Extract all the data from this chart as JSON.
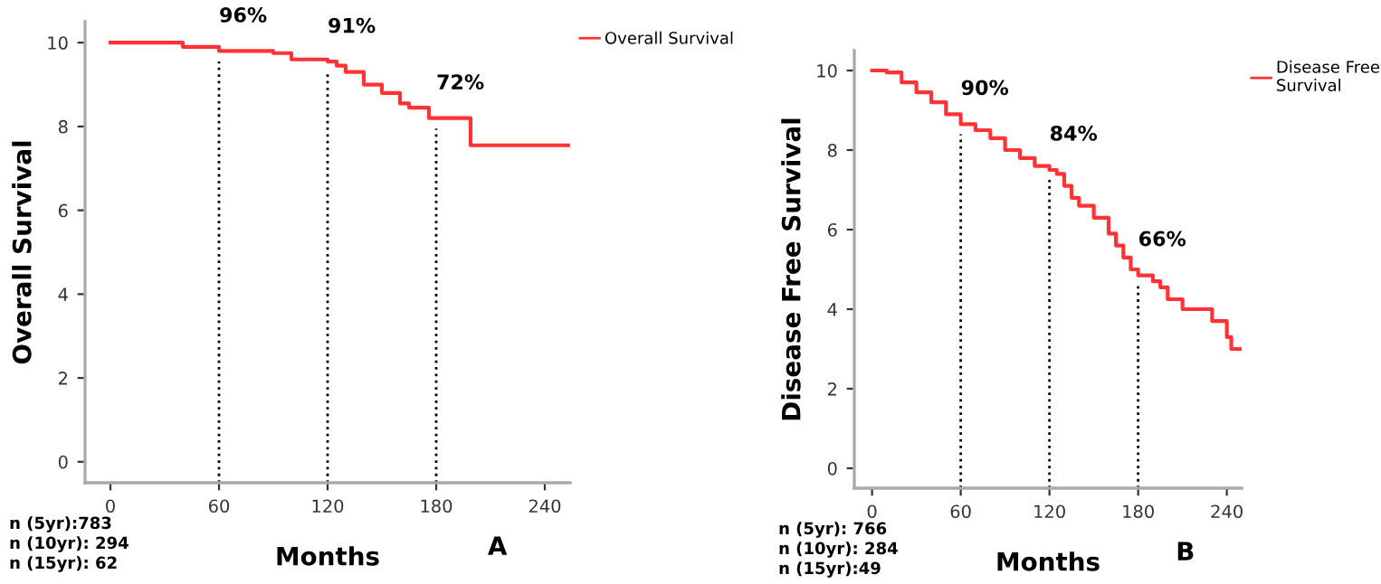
{
  "chart_data": [
    {
      "type": "step",
      "xlabel": "Months",
      "ylabel": "Overall Survival",
      "xlim": [
        -14,
        254
      ],
      "ylim": [
        -0.5,
        10.5
      ],
      "xticks": [
        0,
        60,
        120,
        180,
        240
      ],
      "yticks": [
        0,
        2,
        4,
        6,
        8,
        10
      ],
      "grid": false,
      "legend": "top right",
      "marker": "none",
      "line_style": "solid",
      "series": [
        {
          "name": "Overall Survival",
          "color": "#ff3333",
          "x": [
            0,
            20,
            40,
            60,
            90,
            100,
            120,
            125,
            130,
            140,
            150,
            160,
            165,
            175,
            176,
            198,
            199,
            254
          ],
          "values": [
            10,
            10,
            9.9,
            9.8,
            9.75,
            9.6,
            9.55,
            9.45,
            9.3,
            9.0,
            8.8,
            8.55,
            8.45,
            8.45,
            8.2,
            8.2,
            7.55,
            7.55
          ]
        }
      ],
      "ref_lines": [
        {
          "axis": "x",
          "value": 60,
          "line_style": "dotted"
        },
        {
          "axis": "x",
          "value": 120,
          "line_style": "dotted"
        },
        {
          "axis": "x",
          "value": 180,
          "line_style": "dotted"
        }
      ],
      "annotations": [
        "96%",
        "91%",
        "72%",
        "n (5yr):783",
        "n (10yr): 294",
        "n (15yr): 62",
        "A"
      ]
    },
    {
      "type": "step",
      "xlabel": "Months",
      "ylabel": "Disease Free Survival",
      "xlim": [
        -12,
        250
      ],
      "ylim": [
        -0.5,
        10.5
      ],
      "xticks": [
        0,
        60,
        120,
        180,
        240
      ],
      "yticks": [
        0,
        2,
        4,
        6,
        8,
        10
      ],
      "grid": false,
      "legend": "top right",
      "marker": "none",
      "line_style": "solid",
      "series": [
        {
          "name": "Disease Free Survival",
          "color": "#ff3333",
          "x": [
            0,
            10,
            20,
            30,
            40,
            50,
            60,
            70,
            80,
            90,
            100,
            110,
            120,
            125,
            130,
            135,
            140,
            150,
            160,
            165,
            170,
            175,
            180,
            190,
            195,
            200,
            210,
            220,
            230,
            240,
            243,
            250
          ],
          "values": [
            10,
            9.95,
            9.7,
            9.45,
            9.2,
            8.9,
            8.65,
            8.5,
            8.3,
            8.0,
            7.8,
            7.6,
            7.5,
            7.4,
            7.1,
            6.8,
            6.6,
            6.3,
            5.9,
            5.6,
            5.3,
            5.0,
            4.85,
            4.7,
            4.55,
            4.25,
            4.0,
            4.0,
            3.7,
            3.3,
            3.0,
            3.0
          ]
        }
      ],
      "ref_lines": [
        {
          "axis": "x",
          "value": 60,
          "line_style": "dotted"
        },
        {
          "axis": "x",
          "value": 120,
          "line_style": "dotted"
        },
        {
          "axis": "x",
          "value": 180,
          "line_style": "dotted"
        }
      ],
      "annotations": [
        "90%",
        "84%",
        "66%",
        "n (5yr): 766",
        "n (10yr): 284",
        "n (15yr):49",
        "B"
      ]
    }
  ]
}
